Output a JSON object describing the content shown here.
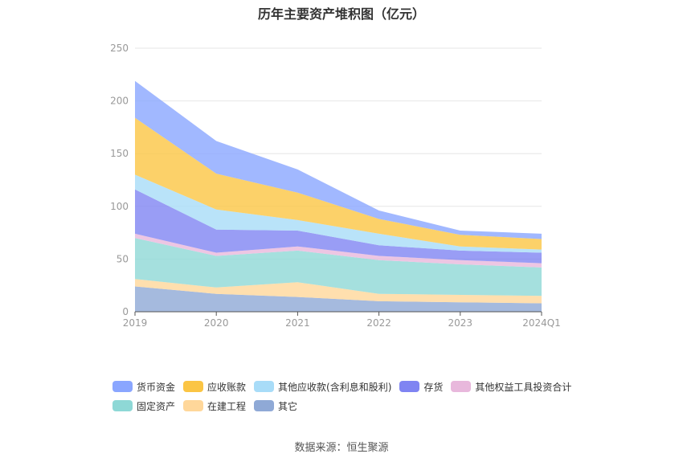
{
  "chart_data": {
    "type": "area",
    "stacked": true,
    "title": "历年主要资产堆积图（亿元）",
    "categories": [
      "2019",
      "2020",
      "2021",
      "2022",
      "2023",
      "2024Q1"
    ],
    "ylim": [
      0,
      250
    ],
    "yticks": [
      "0",
      "50",
      "100",
      "150",
      "200",
      "250"
    ],
    "series": [
      {
        "name": "其它",
        "color": "#8fa9d6",
        "values": [
          24,
          17,
          14,
          10,
          9,
          8
        ]
      },
      {
        "name": "在建工程",
        "color": "#ffd79a",
        "values": [
          7,
          6,
          14,
          7,
          7,
          7
        ]
      },
      {
        "name": "固定资产",
        "color": "#8ed8d6",
        "values": [
          39,
          30,
          30,
          32,
          29,
          27
        ]
      },
      {
        "name": "其他权益工具投资合计",
        "color": "#e8b8dc",
        "values": [
          4,
          3,
          4,
          4,
          4,
          4
        ]
      },
      {
        "name": "存货",
        "color": "#7f84f2",
        "values": [
          42,
          22,
          15,
          10,
          9,
          10
        ]
      },
      {
        "name": "其他应收款(含利息和股利)",
        "color": "#a8dcf8",
        "values": [
          14,
          19,
          10,
          11,
          4,
          3
        ]
      },
      {
        "name": "应收账款",
        "color": "#fbc544",
        "values": [
          54,
          34,
          26,
          14,
          11,
          10
        ]
      },
      {
        "name": "货币资金",
        "color": "#8aa6ff",
        "values": [
          35,
          31,
          22,
          8,
          4,
          5
        ]
      }
    ],
    "legend": [
      {
        "name": "货币资金",
        "color": "#8aa6ff"
      },
      {
        "name": "应收账款",
        "color": "#fbc544"
      },
      {
        "name": "其他应收款(含利息和股利)",
        "color": "#a8dcf8"
      },
      {
        "name": "存货",
        "color": "#7f84f2"
      },
      {
        "name": "其他权益工具投资合计",
        "color": "#e8b8dc"
      },
      {
        "name": "固定资产",
        "color": "#8ed8d6"
      },
      {
        "name": "在建工程",
        "color": "#ffd79a"
      },
      {
        "name": "其它",
        "color": "#8fa9d6"
      }
    ],
    "source": "数据来源：恒生聚源"
  }
}
